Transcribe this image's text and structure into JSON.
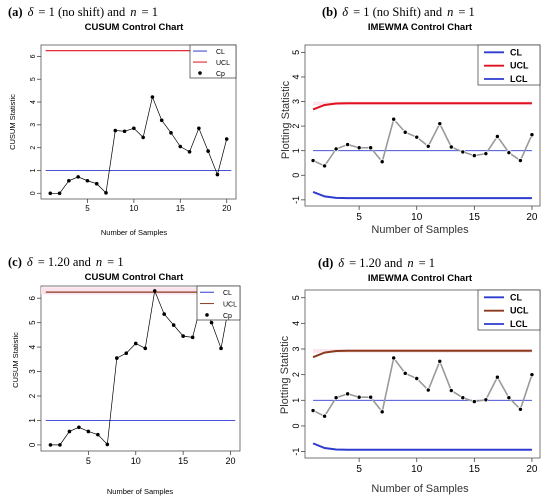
{
  "panels": [
    {
      "caption": {
        "label": "(a)",
        "delta_symbol": "δ",
        "delta_value": "= 1 (no shift) and",
        "n_symbol": "n",
        "n_value": "= 1"
      },
      "chart_data": {
        "type": "line",
        "style": "cusum",
        "title": "CUSUM Control Chart",
        "xlabel": "Number of Samples",
        "ylabel": "CUSUM Statistic",
        "xlim": [
          0,
          21
        ],
        "ylim": [
          -0.25,
          6.5
        ],
        "xticks": [
          "5",
          "10",
          "15",
          "20"
        ],
        "yticks": [
          "0",
          "1",
          "2",
          "3",
          "4",
          "5",
          "6"
        ],
        "legend": {
          "position": "top-right",
          "entries": [
            "CL",
            "UCL",
            "Cp"
          ]
        },
        "colors": {
          "CL": "#2e3cd0",
          "UCL": "#e0101e",
          "Cp": "#000000"
        },
        "series": [
          {
            "name": "CL",
            "kind": "hline",
            "value": 1.0
          },
          {
            "name": "UCL",
            "kind": "hline",
            "value": 6.25
          },
          {
            "name": "Cp",
            "kind": "points",
            "x": [
              1,
              2,
              3,
              4,
              5,
              6,
              7,
              8,
              9,
              10,
              11,
              12,
              13,
              14,
              15,
              16,
              17,
              18,
              19,
              20
            ],
            "values": [
              0.0,
              0.0,
              0.55,
              0.72,
              0.55,
              0.42,
              0.02,
              2.75,
              2.72,
              2.85,
              2.45,
              4.22,
              3.2,
              2.65,
              2.05,
              1.82,
              2.85,
              1.85,
              0.82,
              2.38
            ]
          }
        ]
      }
    },
    {
      "caption": {
        "label": "(b)",
        "delta_symbol": "δ",
        "delta_value": "= 1 (no Shift) and",
        "n_symbol": "n",
        "n_value": "= 1"
      },
      "chart_data": {
        "type": "line",
        "style": "imewma",
        "title": "IMEWMA Control Chart",
        "xlabel": "Number of Samples",
        "ylabel": "Plotting Statistic",
        "xlim": [
          0.3,
          20.7
        ],
        "ylim": [
          -1.25,
          5.3
        ],
        "xticks": [
          "5",
          "10",
          "15",
          "20"
        ],
        "yticks": [
          "-1",
          "0",
          "1",
          "2",
          "3",
          "4",
          "5"
        ],
        "legend": {
          "position": "top-right",
          "entries": [
            "CL",
            "UCL",
            "LCL"
          ]
        },
        "colors": {
          "CL": "#2e3cd0",
          "UCL": "#e0101e",
          "LCL": "#2e3cd0"
        },
        "series": [
          {
            "name": "CL",
            "kind": "hline",
            "value": 1.0
          },
          {
            "name": "UCL",
            "kind": "curve",
            "x": [
              1,
              2,
              3,
              4,
              5,
              6,
              7,
              8,
              9,
              10,
              11,
              12,
              13,
              14,
              15,
              16,
              17,
              18,
              19,
              20
            ],
            "values": [
              2.68,
              2.86,
              2.92,
              2.93,
              2.93,
              2.93,
              2.93,
              2.93,
              2.93,
              2.93,
              2.93,
              2.93,
              2.93,
              2.93,
              2.93,
              2.93,
              2.93,
              2.93,
              2.93,
              2.93
            ]
          },
          {
            "name": "LCL",
            "kind": "curve",
            "x": [
              1,
              2,
              3,
              4,
              5,
              6,
              7,
              8,
              9,
              10,
              11,
              12,
              13,
              14,
              15,
              16,
              17,
              18,
              19,
              20
            ],
            "values": [
              -0.68,
              -0.86,
              -0.92,
              -0.93,
              -0.93,
              -0.93,
              -0.93,
              -0.93,
              -0.93,
              -0.93,
              -0.93,
              -0.93,
              -0.93,
              -0.93,
              -0.93,
              -0.93,
              -0.93,
              -0.93,
              -0.93,
              -0.93
            ]
          },
          {
            "name": "",
            "kind": "points",
            "x": [
              1,
              2,
              3,
              4,
              5,
              6,
              7,
              8,
              9,
              10,
              11,
              12,
              13,
              14,
              15,
              16,
              17,
              18,
              19,
              20
            ],
            "values": [
              0.6,
              0.38,
              1.07,
              1.25,
              1.12,
              1.12,
              0.55,
              2.28,
              1.75,
              1.55,
              1.18,
              2.1,
              1.15,
              0.95,
              0.8,
              0.88,
              1.58,
              0.92,
              0.6,
              1.65
            ]
          }
        ]
      }
    },
    {
      "caption": {
        "label": "(c)",
        "delta_symbol": "δ",
        "delta_value": "= 1.20 and",
        "n_symbol": "n",
        "n_value": "= 1"
      },
      "chart_data": {
        "type": "line",
        "style": "cusum",
        "title": "CUSUM Control Chart",
        "xlabel": "Number of Samples",
        "ylabel": "CUSUM Statistic",
        "xlim": [
          0,
          21
        ],
        "ylim": [
          -0.25,
          6.5
        ],
        "xticks": [
          "5",
          "10",
          "15",
          "20"
        ],
        "yticks": [
          "0",
          "1",
          "2",
          "3",
          "4",
          "5",
          "6"
        ],
        "legend": {
          "position": "top-right",
          "entries": [
            "CL",
            "UCL",
            "Cp"
          ]
        },
        "colors": {
          "CL": "#2e3cd0",
          "UCL": "#8b3a1a",
          "Cp": "#000000"
        },
        "series": [
          {
            "name": "CL",
            "kind": "hline",
            "value": 1.0
          },
          {
            "name": "UCL",
            "kind": "hline",
            "value": 6.25
          },
          {
            "name": "Cp",
            "kind": "points",
            "x": [
              1,
              2,
              3,
              4,
              5,
              6,
              7,
              8,
              9,
              10,
              11,
              12,
              13,
              14,
              15,
              16,
              17,
              18,
              19,
              20
            ],
            "values": [
              0.0,
              0.0,
              0.55,
              0.72,
              0.55,
              0.42,
              0.02,
              3.55,
              3.75,
              4.15,
              3.95,
              6.3,
              5.35,
              4.9,
              4.45,
              4.4,
              5.92,
              5.0,
              3.95,
              6.05
            ]
          }
        ]
      }
    },
    {
      "caption": {
        "label": "(d)",
        "delta_symbol": "δ",
        "delta_value": "= 1.20 and",
        "n_symbol": "n",
        "n_value": "= 1"
      },
      "chart_data": {
        "type": "line",
        "style": "imewma",
        "title": "IMEWMA Control Chart",
        "xlabel": "Number of Samples",
        "ylabel": "Plotting Statistic",
        "xlim": [
          0.3,
          20.7
        ],
        "ylim": [
          -1.25,
          5.3
        ],
        "xticks": [
          "5",
          "10",
          "15",
          "20"
        ],
        "yticks": [
          "-1",
          "0",
          "1",
          "2",
          "3",
          "4",
          "5"
        ],
        "legend": {
          "position": "top-right",
          "entries": [
            "CL",
            "UCL",
            "LCL"
          ]
        },
        "colors": {
          "CL": "#2e3cd0",
          "UCL": "#8b3a1a",
          "LCL": "#2e3cd0"
        },
        "series": [
          {
            "name": "CL",
            "kind": "hline",
            "value": 1.0
          },
          {
            "name": "UCL",
            "kind": "curve",
            "x": [
              1,
              2,
              3,
              4,
              5,
              6,
              7,
              8,
              9,
              10,
              11,
              12,
              13,
              14,
              15,
              16,
              17,
              18,
              19,
              20
            ],
            "values": [
              2.68,
              2.86,
              2.92,
              2.93,
              2.93,
              2.93,
              2.93,
              2.93,
              2.93,
              2.93,
              2.93,
              2.93,
              2.93,
              2.93,
              2.93,
              2.93,
              2.93,
              2.93,
              2.93,
              2.93
            ]
          },
          {
            "name": "LCL",
            "kind": "curve",
            "x": [
              1,
              2,
              3,
              4,
              5,
              6,
              7,
              8,
              9,
              10,
              11,
              12,
              13,
              14,
              15,
              16,
              17,
              18,
              19,
              20
            ],
            "values": [
              -0.68,
              -0.86,
              -0.92,
              -0.93,
              -0.93,
              -0.93,
              -0.93,
              -0.93,
              -0.93,
              -0.93,
              -0.93,
              -0.93,
              -0.93,
              -0.93,
              -0.93,
              -0.93,
              -0.93,
              -0.93,
              -0.93,
              -0.93
            ]
          },
          {
            "name": "",
            "kind": "points",
            "x": [
              1,
              2,
              3,
              4,
              5,
              6,
              7,
              8,
              9,
              10,
              11,
              12,
              13,
              14,
              15,
              16,
              17,
              18,
              19,
              20
            ],
            "values": [
              0.6,
              0.38,
              1.1,
              1.25,
              1.12,
              1.12,
              0.55,
              2.65,
              2.05,
              1.85,
              1.4,
              2.52,
              1.38,
              1.1,
              0.95,
              1.02,
              1.9,
              1.1,
              0.65,
              2.0
            ]
          }
        ]
      }
    }
  ]
}
